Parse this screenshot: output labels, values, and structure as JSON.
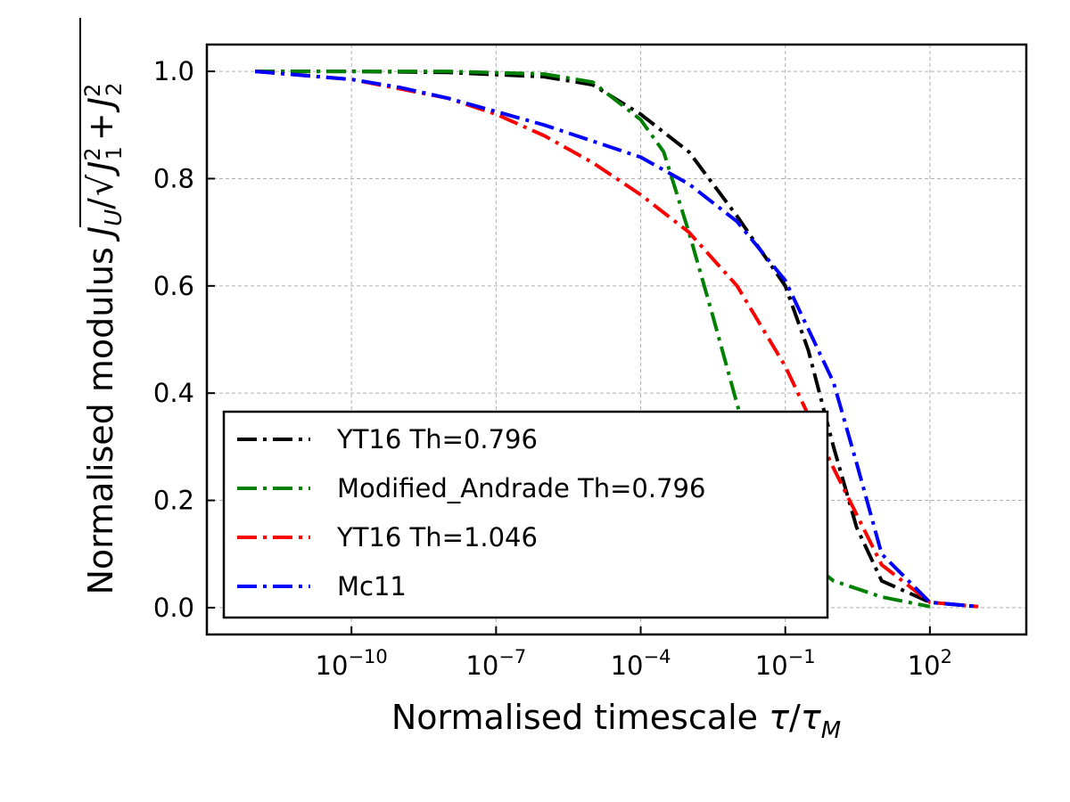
{
  "chart_data": {
    "type": "line",
    "title": "",
    "xlabel": "Normalised timescale τ/τ_M",
    "ylabel": "Normalised modulus J_U/√(J_1² + J_2²)",
    "xscale": "log",
    "xlim": [
      1e-13,
      10000.0
    ],
    "ylim": [
      -0.05,
      1.05
    ],
    "grid": true,
    "legend_position": "lower-left",
    "xticks": [
      {
        "exp": "−10",
        "value": 1e-10
      },
      {
        "exp": "−7",
        "value": 1e-07
      },
      {
        "exp": "−4",
        "value": 0.0001
      },
      {
        "exp": "−1",
        "value": 0.1
      },
      {
        "exp": "2",
        "value": 100
      }
    ],
    "yticks": [
      {
        "label": "0.0",
        "value": 0.0
      },
      {
        "label": "0.2",
        "value": 0.2
      },
      {
        "label": "0.4",
        "value": 0.4
      },
      {
        "label": "0.6",
        "value": 0.6
      },
      {
        "label": "0.8",
        "value": 0.8
      },
      {
        "label": "1.0",
        "value": 1.0
      }
    ],
    "series": [
      {
        "name": "YT16 Th=0.796",
        "color": "#000000",
        "x": [
          1e-12,
          1e-10,
          1e-08,
          1e-06,
          1e-05,
          0.0001,
          0.001,
          0.01,
          0.1,
          0.3,
          1,
          3,
          10,
          100,
          1000
        ],
        "y": [
          1.0,
          1.0,
          0.998,
          0.99,
          0.975,
          0.92,
          0.85,
          0.73,
          0.6,
          0.48,
          0.3,
          0.15,
          0.05,
          0.01,
          0.002
        ]
      },
      {
        "name": "Modified_Andrade Th=0.796",
        "color": "#008000",
        "x": [
          1e-12,
          1e-10,
          1e-08,
          1e-06,
          1e-05,
          0.0001,
          0.0003,
          0.001,
          0.003,
          0.01,
          0.03,
          0.1,
          1,
          10,
          100
        ],
        "y": [
          1.0,
          1.0,
          1.0,
          0.995,
          0.98,
          0.91,
          0.85,
          0.7,
          0.55,
          0.38,
          0.22,
          0.12,
          0.05,
          0.02,
          0.002
        ]
      },
      {
        "name": "YT16 Th=1.046",
        "color": "#ff0000",
        "x": [
          1e-12,
          1e-10,
          1e-08,
          1e-07,
          1e-06,
          1e-05,
          0.0001,
          0.001,
          0.01,
          0.1,
          1,
          10,
          100,
          1000
        ],
        "y": [
          1.0,
          0.985,
          0.95,
          0.92,
          0.88,
          0.83,
          0.77,
          0.7,
          0.6,
          0.45,
          0.26,
          0.08,
          0.01,
          0.002
        ]
      },
      {
        "name": "Mc11",
        "color": "#0000ff",
        "x": [
          1e-12,
          1e-10,
          1e-09,
          1e-08,
          1e-07,
          1e-06,
          1e-05,
          0.0001,
          0.001,
          0.01,
          0.1,
          1,
          3,
          10,
          100,
          1000
        ],
        "y": [
          1.0,
          0.985,
          0.97,
          0.95,
          0.925,
          0.9,
          0.87,
          0.84,
          0.79,
          0.72,
          0.61,
          0.42,
          0.27,
          0.1,
          0.01,
          0.002
        ]
      }
    ]
  }
}
